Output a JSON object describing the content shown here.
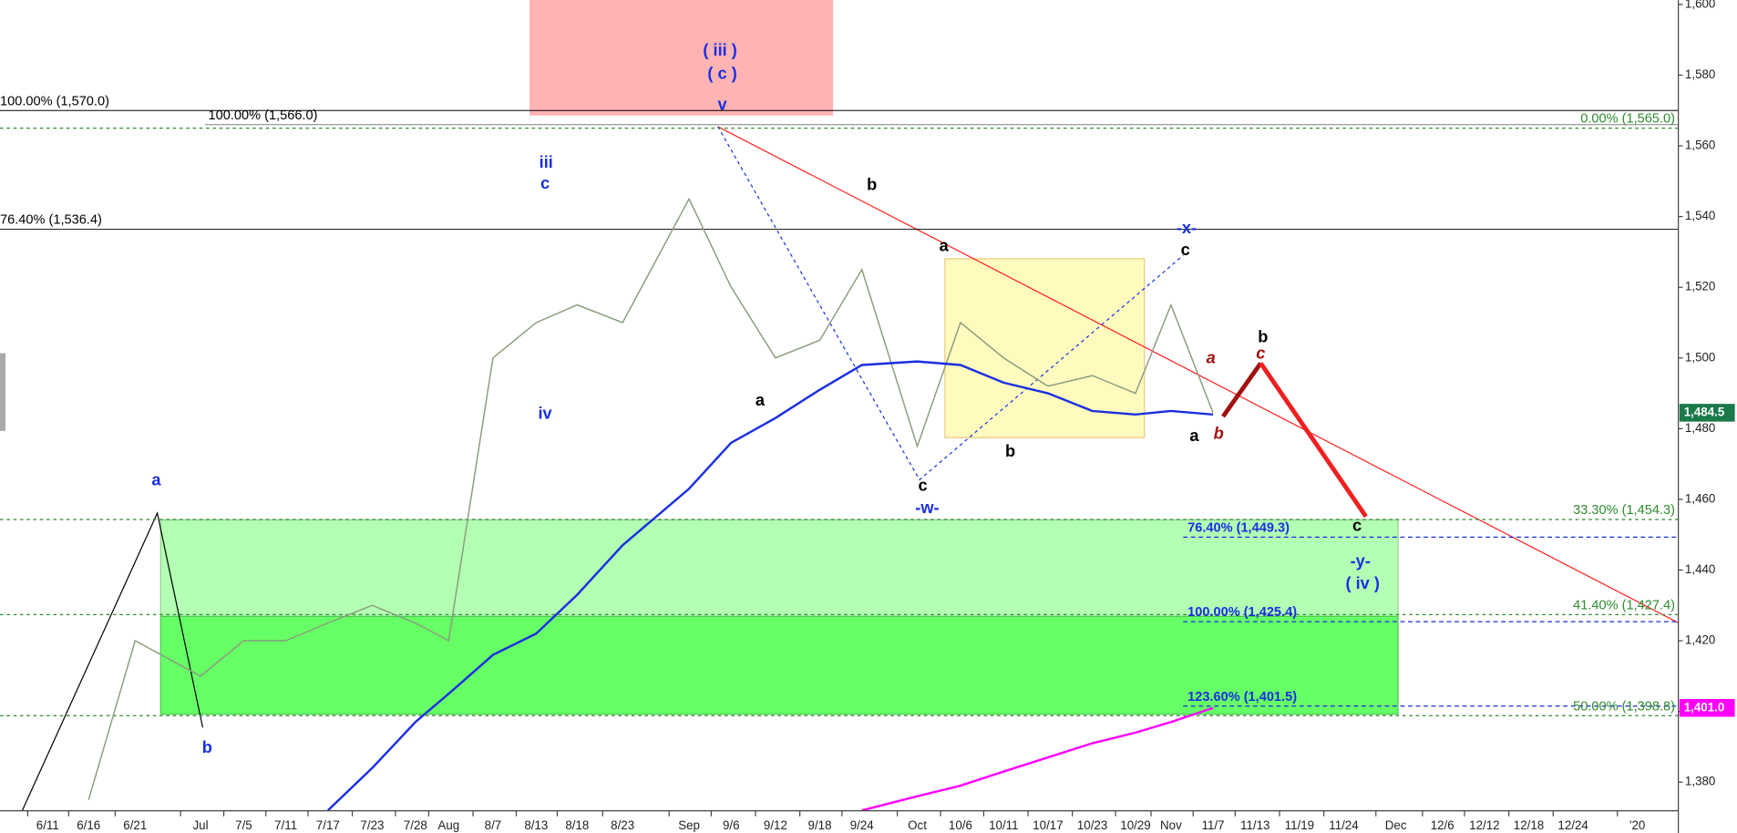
{
  "chart_data": {
    "type": "line",
    "x": [
      "6/11",
      "6/16",
      "6/21",
      "Jul",
      "7/5",
      "7/11",
      "7/17",
      "7/23",
      "7/28",
      "Aug",
      "8/7",
      "8/13",
      "8/18",
      "8/23",
      "Sep",
      "9/6",
      "9/12",
      "9/18",
      "9/24",
      "Oct",
      "10/6",
      "10/11",
      "10/17",
      "10/23",
      "10/29",
      "Nov",
      "11/7",
      "11/13",
      "11/19",
      "11/24",
      "Dec",
      "12/6",
      "12/12",
      "12/18",
      "12/24",
      "'20"
    ],
    "series": [
      {
        "color": "#8a9c7c",
        "values": [
          null,
          1375,
          1420,
          1410,
          1420,
          1420,
          1425,
          1430,
          1425,
          1420,
          1500,
          1510,
          1515,
          1510,
          1545,
          1520,
          1500,
          1505,
          1525,
          1475,
          1510,
          1500,
          1492,
          1495,
          1490,
          1515,
          1484.5,
          null,
          null,
          null,
          null,
          null,
          null,
          null,
          null,
          null
        ]
      },
      {
        "color": "#1a2fe0",
        "values": [
          null,
          null,
          null,
          null,
          null,
          null,
          1372,
          1384,
          1397,
          1405,
          1416,
          1422,
          1433,
          1447,
          1463,
          1476,
          1483,
          1491,
          1498,
          1499,
          1498,
          1493,
          1490,
          1485,
          1484,
          1485,
          1484,
          null,
          null,
          null,
          null,
          null,
          null,
          null,
          null,
          null
        ]
      },
      {
        "color": "#ff00ff",
        "values": [
          null,
          null,
          null,
          null,
          null,
          null,
          null,
          null,
          null,
          null,
          null,
          null,
          null,
          null,
          null,
          null,
          null,
          null,
          1372,
          1376,
          1379,
          1383,
          1387,
          1391,
          1394,
          1397,
          1401,
          null,
          null,
          null,
          null,
          null,
          null,
          null,
          null,
          null
        ]
      }
    ],
    "ylim": [
      1370,
      1600
    ],
    "yticks": [
      {
        "value": 1380,
        "label": "1,380"
      },
      {
        "value": 1400,
        "label": "1,400"
      },
      {
        "value": 1420,
        "label": "1,420"
      },
      {
        "value": 1440,
        "label": "1,440"
      },
      {
        "value": 1460,
        "label": "1,460"
      },
      {
        "value": 1480,
        "label": "1,480"
      },
      {
        "value": 1500,
        "label": "1,500"
      },
      {
        "value": 1520,
        "label": "1,520"
      },
      {
        "value": 1540,
        "label": "1,540"
      },
      {
        "value": 1560,
        "label": "1,560"
      },
      {
        "value": 1580,
        "label": "1,580"
      },
      {
        "value": 1600,
        "label": "1,600"
      }
    ],
    "grid": false,
    "fib_levels": [
      {
        "label": "100.00% (1,570.0)",
        "value": 1570,
        "color": "#000000"
      },
      {
        "label": "76.40% (1,536.4)",
        "value": 1536.4,
        "color": "#000000"
      },
      {
        "label": "100.00% (1,566.0)",
        "value": 1566,
        "color": "#000000"
      },
      {
        "label": "0.00% (1,565.0)",
        "value": 1565,
        "color": "#2e8b2e"
      },
      {
        "label": "33.30% (1,454.3)",
        "value": 1454.3,
        "color": "#2e8b2e"
      },
      {
        "label": "41.40% (1,427.4)",
        "value": 1427.4,
        "color": "#2e8b2e"
      },
      {
        "label": "50.00% (1,398.8)",
        "value": 1398.8,
        "color": "#2e8b2e"
      },
      {
        "label": "76.40% (1,449.3)",
        "value": 1449.3,
        "color": "#1a2fe0"
      },
      {
        "label": "100.00% (1,425.4)",
        "value": 1425.4,
        "color": "#1a2fe0"
      },
      {
        "label": "123.60% (1,401.5)",
        "value": 1401.5,
        "color": "#1a2fe0"
      }
    ],
    "price_tags": [
      {
        "label": "1,484.5",
        "value": 1484.5,
        "color": "#1a7a4a"
      },
      {
        "label": "1,401.0",
        "value": 1401,
        "color": "#ff00ff"
      }
    ],
    "annotations": [
      {
        "text": "( iii )",
        "color": "#1a2fe0"
      },
      {
        "text": "( c )",
        "color": "#1a2fe0"
      },
      {
        "text": "v",
        "color": "#1a2fe0"
      },
      {
        "text": "iii",
        "color": "#1a2fe0"
      },
      {
        "text": "c",
        "color": "#1a2fe0"
      },
      {
        "text": "iv",
        "color": "#1a2fe0"
      },
      {
        "text": "a",
        "color": "#1a2fe0"
      },
      {
        "text": "b",
        "color": "#1a2fe0"
      },
      {
        "text": "b",
        "color": "#000000"
      },
      {
        "text": "a",
        "color": "#000000"
      },
      {
        "text": "a",
        "color": "#000000"
      },
      {
        "text": "c",
        "color": "#000000"
      },
      {
        "text": "-w-",
        "color": "#1a2fe0"
      },
      {
        "text": "b",
        "color": "#000000"
      },
      {
        "text": "-x-",
        "color": "#1a2fe0"
      },
      {
        "text": "c",
        "color": "#000000"
      },
      {
        "text": "a",
        "color": "#a01010"
      },
      {
        "text": "a",
        "color": "#000000"
      },
      {
        "text": "b",
        "color": "#a01010"
      },
      {
        "text": "b",
        "color": "#000000"
      },
      {
        "text": "c",
        "color": "#a01010"
      },
      {
        "text": "c",
        "color": "#000000"
      },
      {
        "text": "-y-",
        "color": "#1a2fe0"
      },
      {
        "text": "( iv )",
        "color": "#1a2fe0"
      }
    ]
  }
}
